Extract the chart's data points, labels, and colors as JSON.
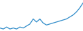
{
  "values": [
    5,
    4,
    6,
    4,
    5,
    4,
    6,
    5,
    7,
    9,
    14,
    11,
    14,
    10,
    8,
    9,
    10,
    11,
    12,
    13,
    14,
    16,
    18,
    21,
    25,
    30
  ],
  "line_color": "#2e8bc9",
  "line_width": 0.9,
  "background_color": "#ffffff",
  "ylim": [
    2,
    33
  ],
  "figsize": [
    1.2,
    0.45
  ],
  "dpi": 100
}
